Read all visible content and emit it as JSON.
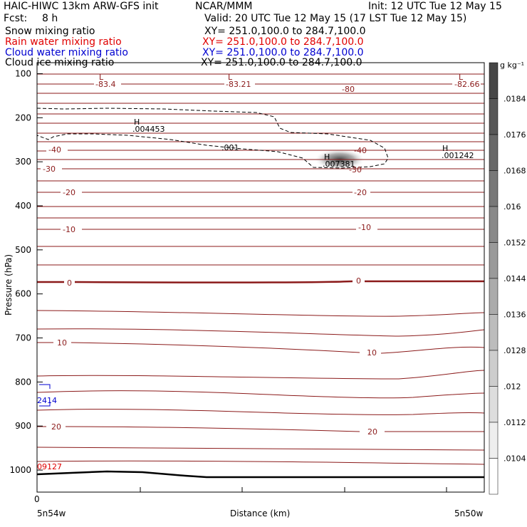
{
  "header": {
    "title_left": "HAIC-HIWC 13km ARW-GFS init",
    "center": "NCAR/MMM",
    "init": "Init: 12 UTC Tue 12 May 15",
    "fcst_label": "Fcst:",
    "fcst_value": "8 h",
    "valid": "Valid: 20 UTC Tue 12 May 15 (17 LST Tue 12 May 15)"
  },
  "fields": [
    {
      "name": "Snow mixing ratio",
      "xy": "XY= 251.0,100.0 to 284.7,100.0",
      "color": "#000000"
    },
    {
      "name": "Rain water mixing ratio",
      "xy": "XY= 251.0,100.0 to 284.7,100.0",
      "color": "#e00000"
    },
    {
      "name": "Cloud water mixing ratio",
      "xy": "XY= 251.0,100.0 to 284.7,100.0",
      "color": "#0000d0"
    },
    {
      "name": "Cloud ice mixing ratio",
      "xy": "XY= 251.0,100.0 to 284.7,100.0",
      "color": "#000000"
    }
  ],
  "chart_data": {
    "type": "cross-section",
    "ylabel": "Pressure (hPa)",
    "xlabel": "Distance (km)",
    "x_start_label": "5n54w",
    "x_end_label": "5n50w",
    "x_ticks": [
      "0"
    ],
    "ylim": [
      1050,
      75
    ],
    "y_ticks": [
      100,
      200,
      300,
      400,
      500,
      600,
      700,
      800,
      900,
      1000
    ],
    "colorbar": {
      "unit": "g kg⁻¹",
      "levels": [
        ".0184",
        ".0176",
        ".0168",
        ".016",
        ".0152",
        ".0144",
        ".0136",
        ".0128",
        ".012",
        ".0112",
        ".0104"
      ]
    },
    "contour_labels": [
      {
        "text": "-83.4",
        "color": "#8b1a1a"
      },
      {
        "text": "-83.21",
        "color": "#8b1a1a"
      },
      {
        "text": "-82.66",
        "color": "#8b1a1a"
      },
      {
        "text": "-80",
        "color": "#8b1a1a"
      },
      {
        "text": "-40",
        "color": "#8b1a1a"
      },
      {
        "text": "-30",
        "color": "#8b1a1a"
      },
      {
        "text": "-20",
        "color": "#8b1a1a"
      },
      {
        "text": "-10",
        "color": "#8b1a1a"
      },
      {
        "text": "0",
        "color": "#8b1a1a"
      },
      {
        "text": "10",
        "color": "#8b1a1a"
      },
      {
        "text": "20",
        "color": "#8b1a1a"
      },
      {
        "text": ".004453",
        "color": "#000000"
      },
      {
        "text": ".001",
        "color": "#000000"
      },
      {
        "text": ".007381",
        "color": "#000000"
      },
      {
        "text": ".001242",
        "color": "#000000"
      },
      {
        "text": "2414",
        "color": "#0000d0"
      },
      {
        "text": "09127",
        "color": "#e00000"
      }
    ],
    "extrema_markers": [
      "L",
      "L",
      "L",
      "H",
      "H",
      "H"
    ]
  }
}
